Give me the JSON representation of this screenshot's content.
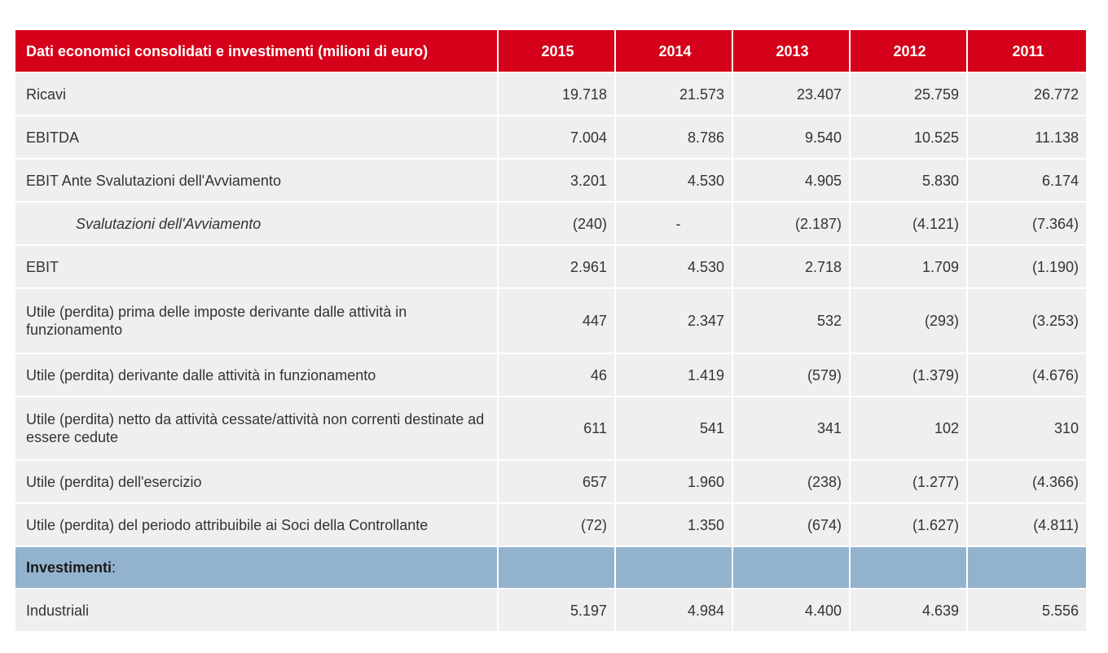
{
  "table": {
    "header": {
      "label": "Dati economici consolidati e investimenti (milioni di euro)",
      "years": [
        "2015",
        "2014",
        "2013",
        "2012",
        "2011"
      ]
    },
    "rows": [
      {
        "label": "Ricavi",
        "values": [
          "19.718",
          "21.573",
          "23.407",
          "25.759",
          "26.772"
        ]
      },
      {
        "label": "EBITDA",
        "values": [
          "7.004",
          "8.786",
          "9.540",
          "10.525",
          "11.138"
        ]
      },
      {
        "label": "EBIT Ante Svalutazioni dell'Avviamento",
        "values": [
          "3.201",
          "4.530",
          "4.905",
          "5.830",
          "6.174"
        ]
      },
      {
        "label": "Svalutazioni dell'Avviamento",
        "values": [
          "(240)",
          "-",
          "(2.187)",
          "(4.121)",
          "(7.364)"
        ]
      },
      {
        "label": "EBIT",
        "values": [
          "2.961",
          "4.530",
          "2.718",
          "1.709",
          "(1.190)"
        ]
      },
      {
        "label": "Utile (perdita)  prima delle imposte derivante dalle attività in funzionamento",
        "values": [
          "447",
          "2.347",
          "532",
          "(293)",
          "(3.253)"
        ]
      },
      {
        "label": "Utile (perdita) derivante dalle attività in funzionamento",
        "values": [
          "46",
          "1.419",
          "(579)",
          "(1.379)",
          "(4.676)"
        ]
      },
      {
        "label": "Utile (perdita) netto da attività cessate/attività non correnti destinate ad essere cedute",
        "values": [
          "611",
          "541",
          "341",
          "102",
          "310"
        ]
      },
      {
        "label": "Utile (perdita) dell'esercizio",
        "values": [
          "657",
          "1.960",
          "(238)",
          "(1.277)",
          "(4.366)"
        ]
      },
      {
        "label": "Utile (perdita) del periodo attribuibile ai Soci della Controllante",
        "values": [
          "(72)",
          "1.350",
          "(674)",
          "(1.627)",
          "(4.811)"
        ]
      }
    ],
    "section": {
      "label": "Investimenti",
      "suffix": ":"
    },
    "section_rows": [
      {
        "label": "Industriali",
        "values": [
          "5.197",
          "4.984",
          "4.400",
          "4.639",
          "5.556"
        ]
      }
    ]
  },
  "colors": {
    "header_red": "#d50019",
    "row_gray": "#efefef",
    "section_blue": "#93b2ce"
  }
}
